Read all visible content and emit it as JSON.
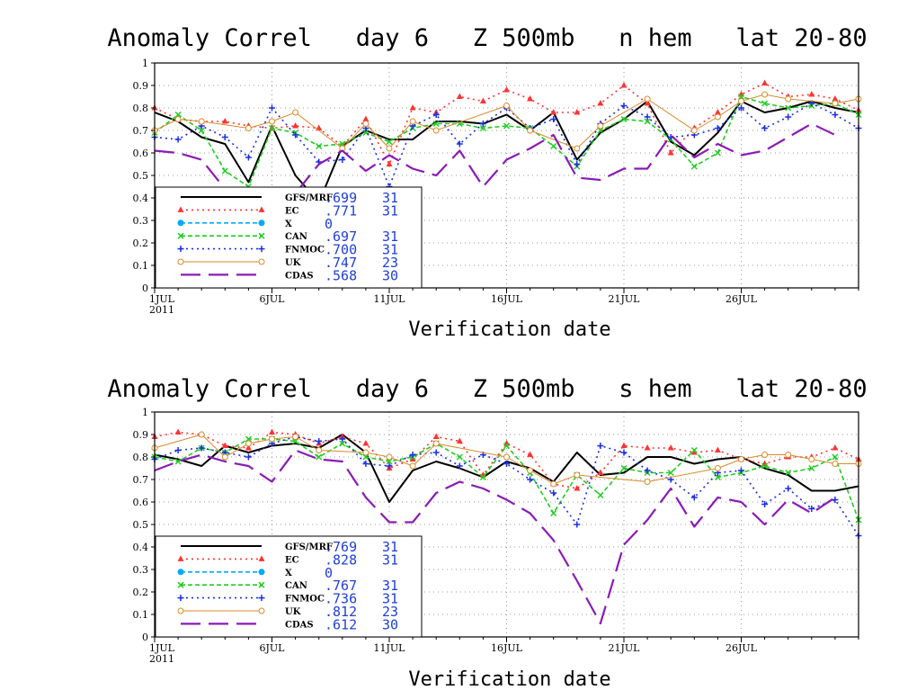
{
  "colors": {
    "GFS/MRF": "#000000",
    "EC": "#ff3333",
    "X": "#00aaff",
    "CAN": "#22cc22",
    "FNMOC": "#1b2fe6",
    "UK": "#d98a2b",
    "CDAS": "#8a1bb5"
  },
  "chart_data": [
    {
      "type": "line",
      "title": "Anomaly Correl   day 6   Z 500mb   n hem   lat 20-80",
      "xlabel": "Verification date",
      "ylabel": "",
      "ylim": [
        0,
        1
      ],
      "yticks": [
        "0",
        "0.1",
        "0.2",
        "0.3",
        "0.4",
        "0.5",
        "0.6",
        "0.7",
        "0.8",
        "0.9",
        "1"
      ],
      "xticks": [
        {
          "day": 1,
          "label": "1JUL",
          "sublabel": "2011"
        },
        {
          "day": 6,
          "label": "6JUL",
          "sublabel": ""
        },
        {
          "day": 11,
          "label": "11JUL",
          "sublabel": ""
        },
        {
          "day": 16,
          "label": "16JUL",
          "sublabel": ""
        },
        {
          "day": 21,
          "label": "21JUL",
          "sublabel": ""
        },
        {
          "day": 26,
          "label": "26JUL",
          "sublabel": ""
        }
      ],
      "xlim": [
        1,
        31
      ],
      "grid": true,
      "legend_position": "bottom-left",
      "series": [
        {
          "name": "GFS/MRF",
          "value": ".699",
          "count": "31",
          "style": "solid",
          "marker": "none",
          "x": [
            1,
            2,
            3,
            4,
            5,
            6,
            7,
            8,
            9,
            10,
            11,
            12,
            13,
            14,
            15,
            16,
            17,
            18,
            19,
            20,
            21,
            22,
            23,
            24,
            25,
            26,
            27,
            28,
            29,
            30,
            31
          ],
          "y": [
            0.78,
            0.74,
            0.67,
            0.64,
            0.47,
            0.72,
            0.5,
            0.38,
            0.63,
            0.7,
            0.66,
            0.66,
            0.74,
            0.74,
            0.73,
            0.77,
            0.7,
            0.78,
            0.57,
            0.69,
            0.75,
            0.83,
            0.65,
            0.59,
            0.69,
            0.83,
            0.78,
            0.8,
            0.83,
            0.8,
            0.78
          ]
        },
        {
          "name": "EC",
          "value": ".771",
          "count": "31",
          "style": "dotted",
          "marker": "triangle",
          "x": [
            1,
            2,
            3,
            4,
            5,
            6,
            7,
            8,
            9,
            10,
            11,
            12,
            13,
            14,
            15,
            16,
            17,
            18,
            19,
            20,
            21,
            22,
            23,
            24,
            25,
            26,
            27,
            28,
            29,
            30,
            31
          ],
          "y": [
            0.8,
            0.75,
            0.74,
            0.74,
            0.72,
            0.71,
            0.72,
            0.71,
            0.63,
            0.75,
            0.55,
            0.8,
            0.78,
            0.85,
            0.83,
            0.88,
            0.84,
            0.78,
            0.78,
            0.82,
            0.9,
            0.82,
            0.6,
            0.71,
            0.78,
            0.86,
            0.91,
            0.85,
            0.86,
            0.84,
            0.79
          ]
        },
        {
          "name": "X",
          "value": "0",
          "count": "",
          "style": "dashed",
          "marker": "dot",
          "x": [],
          "y": []
        },
        {
          "name": "CAN",
          "value": ".697",
          "count": "31",
          "style": "dashed",
          "marker": "x",
          "x": [
            1,
            2,
            3,
            4,
            5,
            6,
            7,
            8,
            9,
            10,
            11,
            12,
            13,
            14,
            15,
            16,
            17,
            18,
            19,
            20,
            21,
            22,
            23,
            24,
            25,
            26,
            27,
            28,
            29,
            30,
            31
          ],
          "y": [
            0.69,
            0.77,
            0.7,
            0.52,
            0.45,
            0.71,
            0.69,
            0.63,
            0.64,
            0.69,
            0.65,
            0.71,
            0.73,
            0.73,
            0.71,
            0.72,
            0.71,
            0.63,
            0.54,
            0.7,
            0.75,
            0.74,
            0.66,
            0.54,
            0.6,
            0.85,
            0.82,
            0.8,
            0.81,
            0.82,
            0.77
          ]
        },
        {
          "name": "FNMOC",
          "value": ".700",
          "count": "31",
          "style": "dotted",
          "marker": "plus",
          "x": [
            1,
            2,
            3,
            4,
            5,
            6,
            7,
            8,
            9,
            10,
            11,
            12,
            13,
            14,
            15,
            16,
            17,
            18,
            19,
            20,
            21,
            22,
            23,
            24,
            25,
            26,
            27,
            28,
            29,
            30,
            31
          ],
          "y": [
            0.67,
            0.66,
            0.72,
            0.67,
            0.58,
            0.8,
            0.68,
            0.56,
            0.57,
            0.71,
            0.45,
            0.72,
            0.77,
            0.64,
            0.73,
            0.8,
            0.71,
            0.75,
            0.55,
            0.73,
            0.81,
            0.76,
            0.67,
            0.68,
            0.71,
            0.8,
            0.71,
            0.76,
            0.82,
            0.77,
            0.71
          ]
        },
        {
          "name": "UK",
          "value": ".747",
          "count": "23",
          "style": "solid-thin",
          "marker": "circle",
          "x": [
            1,
            2,
            3,
            5,
            6,
            7,
            9,
            10,
            11,
            12,
            13,
            16,
            17,
            19,
            20,
            22,
            24,
            25,
            26,
            27,
            28,
            30,
            31
          ],
          "y": [
            0.7,
            0.75,
            0.74,
            0.71,
            0.74,
            0.78,
            0.62,
            0.73,
            0.62,
            0.74,
            0.7,
            0.81,
            0.7,
            0.62,
            0.72,
            0.84,
            0.7,
            0.76,
            0.83,
            0.86,
            0.84,
            0.82,
            0.84
          ]
        },
        {
          "name": "CDAS",
          "value": ".568",
          "count": "30",
          "style": "longdash",
          "marker": "none",
          "x": [
            1,
            2,
            3,
            4,
            5,
            6,
            7,
            8,
            9,
            10,
            11,
            12,
            13,
            14,
            15,
            16,
            17,
            18,
            19,
            20,
            21,
            22,
            23,
            24,
            25,
            26,
            27,
            28,
            29,
            30
          ],
          "y": [
            0.61,
            0.6,
            0.57,
            0.44,
            0.42,
            0.36,
            0.42,
            0.55,
            0.61,
            0.52,
            0.59,
            0.53,
            0.5,
            0.61,
            0.45,
            0.57,
            0.62,
            0.68,
            0.49,
            0.48,
            0.53,
            0.53,
            0.68,
            0.58,
            0.64,
            0.59,
            0.61,
            0.67,
            0.73,
            0.68
          ]
        }
      ]
    },
    {
      "type": "line",
      "title": "Anomaly Correl   day 6   Z 500mb   s hem   lat 20-80",
      "xlabel": "Verification date",
      "ylabel": "",
      "ylim": [
        0,
        1
      ],
      "yticks": [
        "0",
        "0.1",
        "0.2",
        "0.3",
        "0.4",
        "0.5",
        "0.6",
        "0.7",
        "0.8",
        "0.9",
        "1"
      ],
      "xticks": [
        {
          "day": 1,
          "label": "1JUL",
          "sublabel": "2011"
        },
        {
          "day": 6,
          "label": "6JUL",
          "sublabel": ""
        },
        {
          "day": 11,
          "label": "11JUL",
          "sublabel": ""
        },
        {
          "day": 16,
          "label": "16JUL",
          "sublabel": ""
        },
        {
          "day": 21,
          "label": "21JUL",
          "sublabel": ""
        },
        {
          "day": 26,
          "label": "26JUL",
          "sublabel": ""
        }
      ],
      "xlim": [
        1,
        31
      ],
      "grid": true,
      "legend_position": "bottom-left",
      "series": [
        {
          "name": "GFS/MRF",
          "value": ".769",
          "count": "31",
          "style": "solid",
          "marker": "none",
          "x": [
            1,
            2,
            3,
            4,
            5,
            6,
            7,
            8,
            9,
            10,
            11,
            12,
            13,
            14,
            15,
            16,
            17,
            18,
            19,
            20,
            21,
            22,
            23,
            24,
            25,
            26,
            27,
            28,
            29,
            30,
            31
          ],
          "y": [
            0.81,
            0.79,
            0.76,
            0.85,
            0.82,
            0.85,
            0.86,
            0.84,
            0.9,
            0.82,
            0.6,
            0.74,
            0.78,
            0.75,
            0.71,
            0.78,
            0.75,
            0.69,
            0.82,
            0.72,
            0.73,
            0.8,
            0.8,
            0.77,
            0.79,
            0.8,
            0.75,
            0.72,
            0.65,
            0.65,
            0.67
          ]
        },
        {
          "name": "EC",
          "value": ".828",
          "count": "31",
          "style": "dotted",
          "marker": "triangle",
          "x": [
            1,
            2,
            3,
            4,
            5,
            6,
            7,
            8,
            9,
            10,
            11,
            12,
            13,
            14,
            15,
            16,
            17,
            18,
            19,
            20,
            21,
            22,
            23,
            24,
            25,
            26,
            27,
            28,
            29,
            30,
            31
          ],
          "y": [
            0.89,
            0.91,
            0.9,
            0.85,
            0.84,
            0.91,
            0.9,
            0.86,
            0.89,
            0.86,
            0.75,
            0.79,
            0.89,
            0.87,
            0.72,
            0.86,
            0.81,
            0.68,
            0.66,
            0.73,
            0.85,
            0.84,
            0.84,
            0.82,
            0.83,
            0.79,
            0.77,
            0.8,
            0.8,
            0.84,
            0.79
          ]
        },
        {
          "name": "X",
          "value": "0",
          "count": "",
          "style": "dashed",
          "marker": "dot",
          "x": [],
          "y": []
        },
        {
          "name": "CAN",
          "value": ".767",
          "count": "31",
          "style": "dashed",
          "marker": "x",
          "x": [
            1,
            2,
            3,
            4,
            5,
            6,
            7,
            8,
            9,
            10,
            11,
            12,
            13,
            14,
            15,
            16,
            17,
            18,
            19,
            20,
            21,
            22,
            23,
            24,
            25,
            26,
            27,
            28,
            29,
            30,
            31
          ],
          "y": [
            0.8,
            0.78,
            0.84,
            0.82,
            0.88,
            0.88,
            0.87,
            0.8,
            0.86,
            0.8,
            0.78,
            0.8,
            0.86,
            0.8,
            0.71,
            0.85,
            0.73,
            0.55,
            0.72,
            0.63,
            0.75,
            0.73,
            0.73,
            0.83,
            0.71,
            0.73,
            0.76,
            0.73,
            0.75,
            0.8,
            0.52
          ]
        },
        {
          "name": "FNMOC",
          "value": ".736",
          "count": "31",
          "style": "dotted",
          "marker": "plus",
          "x": [
            1,
            2,
            3,
            4,
            5,
            6,
            7,
            8,
            9,
            10,
            11,
            12,
            13,
            14,
            15,
            16,
            17,
            18,
            19,
            20,
            21,
            22,
            23,
            24,
            25,
            26,
            27,
            28,
            29,
            30,
            31
          ],
          "y": [
            0.79,
            0.83,
            0.84,
            0.82,
            0.8,
            0.86,
            0.89,
            0.87,
            0.88,
            0.77,
            0.76,
            0.81,
            0.82,
            0.76,
            0.81,
            0.77,
            0.7,
            0.64,
            0.5,
            0.85,
            0.82,
            0.74,
            0.7,
            0.62,
            0.73,
            0.74,
            0.59,
            0.66,
            0.57,
            0.61,
            0.45
          ]
        },
        {
          "name": "UK",
          "value": ".812",
          "count": "23",
          "style": "solid-thin",
          "marker": "circle",
          "x": [
            1,
            3,
            4,
            5,
            6,
            7,
            8,
            10,
            11,
            12,
            13,
            16,
            17,
            18,
            19,
            22,
            25,
            26,
            27,
            28,
            29,
            30,
            31
          ],
          "y": [
            0.84,
            0.9,
            0.8,
            0.86,
            0.88,
            0.89,
            0.83,
            0.82,
            0.8,
            0.76,
            0.86,
            0.8,
            0.74,
            0.68,
            0.72,
            0.69,
            0.75,
            0.79,
            0.81,
            0.81,
            0.79,
            0.77,
            0.77
          ]
        },
        {
          "name": "CDAS",
          "value": ".612",
          "count": "30",
          "style": "longdash",
          "marker": "none",
          "x": [
            1,
            2,
            3,
            4,
            5,
            6,
            7,
            8,
            9,
            10,
            11,
            12,
            13,
            14,
            15,
            16,
            17,
            18,
            19,
            20,
            21,
            22,
            23,
            24,
            25,
            26,
            27,
            28,
            29,
            30
          ],
          "y": [
            0.74,
            0.78,
            0.81,
            0.78,
            0.76,
            0.69,
            0.83,
            0.79,
            0.78,
            0.62,
            0.51,
            0.51,
            0.64,
            0.69,
            0.66,
            0.61,
            0.55,
            0.43,
            0.25,
            0.06,
            0.41,
            0.52,
            0.66,
            0.49,
            0.62,
            0.6,
            0.5,
            0.61,
            0.55,
            0.62
          ]
        }
      ]
    }
  ]
}
